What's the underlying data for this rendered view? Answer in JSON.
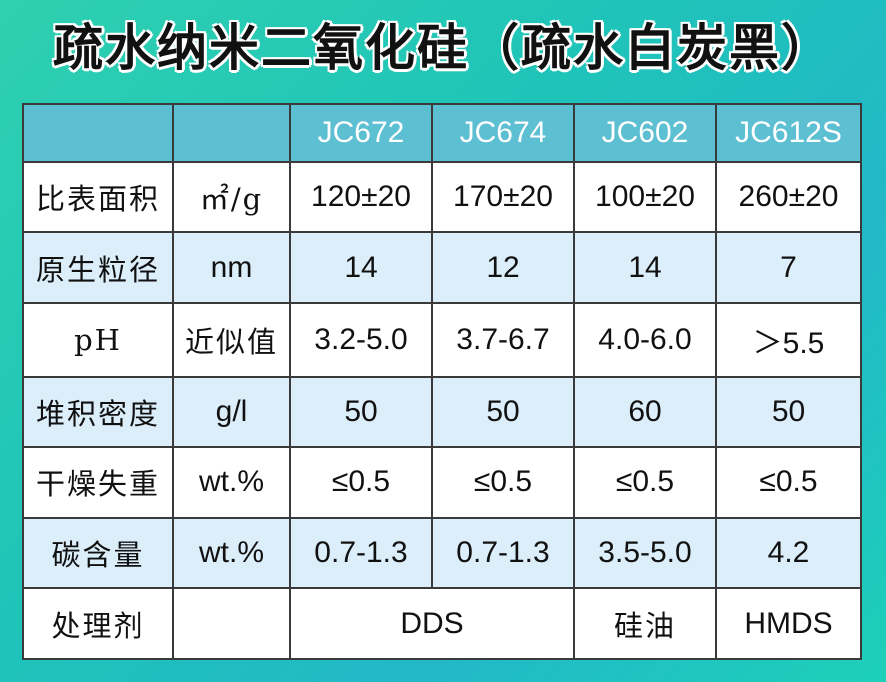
{
  "title": "疏水纳米二氧化硅（疏水白炭黑）",
  "table": {
    "columns": [
      "JC672",
      "JC674",
      "JC602",
      "JC612S"
    ],
    "rows": [
      {
        "label": "比表面积",
        "unit": "㎡/g",
        "values": [
          "120±20",
          "170±20",
          "100±20",
          "260±20"
        ]
      },
      {
        "label": "原生粒径",
        "unit": "nm",
        "values": [
          "14",
          "12",
          "14",
          "7"
        ]
      },
      {
        "label": "pH",
        "unit": "近似值",
        "values": [
          "3.2-5.0",
          "3.7-6.7",
          "4.0-6.0",
          "＞5.5"
        ]
      },
      {
        "label": "堆积密度",
        "unit": "g/l",
        "values": [
          "50",
          "50",
          "60",
          "50"
        ]
      },
      {
        "label": "干燥失重",
        "unit": "wt.%",
        "values": [
          "≤0.5",
          "≤0.5",
          "≤0.5",
          "≤0.5"
        ]
      },
      {
        "label": "碳含量",
        "unit": "wt.%",
        "values": [
          "0.7-1.3",
          "0.7-1.3",
          "3.5-5.0",
          "4.2"
        ]
      },
      {
        "label": "处理剂",
        "values": [
          "DDS",
          "硅油",
          "HMDS"
        ],
        "spans": [
          2,
          1,
          1
        ]
      }
    ]
  }
}
